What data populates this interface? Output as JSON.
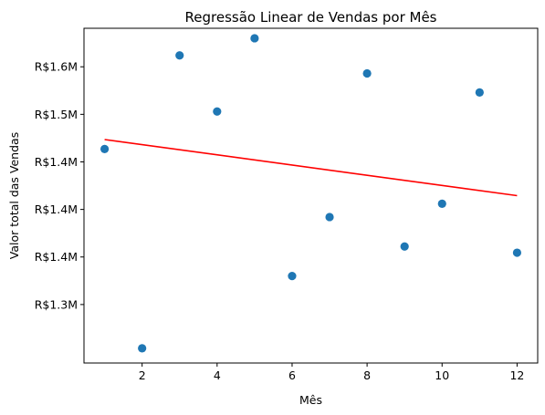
{
  "chart_data": {
    "type": "scatter",
    "title": "Regressão Linear de Vendas por Mês",
    "xlabel": "Mês",
    "ylabel": "Valor total das Vendas",
    "xlim": [
      0.45,
      12.55
    ],
    "ylim": [
      1.2385,
      1.5905
    ],
    "x_ticks": [
      2,
      4,
      6,
      8,
      10,
      12
    ],
    "x_tick_labels": [
      "2",
      "4",
      "6",
      "8",
      "10",
      "12"
    ],
    "y_ticks": [
      1.3,
      1.35,
      1.4,
      1.45,
      1.5,
      1.55
    ],
    "y_tick_labels": [
      "R$1.3M",
      "R$1.4M",
      "R$1.4M",
      "R$1.4M",
      "R$1.5M",
      "R$1.6M"
    ],
    "y_ticks_extra_note": "",
    "scatter": {
      "color": "#1f77b4",
      "points": [
        {
          "x": 1,
          "y": 1.4635
        },
        {
          "x": 2,
          "y": 1.254
        },
        {
          "x": 3,
          "y": 1.562
        },
        {
          "x": 4,
          "y": 1.503
        },
        {
          "x": 5,
          "y": 1.58
        },
        {
          "x": 6,
          "y": 1.33
        },
        {
          "x": 7,
          "y": 1.392
        },
        {
          "x": 8,
          "y": 1.543
        },
        {
          "x": 9,
          "y": 1.361
        },
        {
          "x": 10,
          "y": 1.406
        },
        {
          "x": 11,
          "y": 1.523
        },
        {
          "x": 12,
          "y": 1.3545
        }
      ]
    },
    "regression_line": {
      "color": "#ff0000",
      "x": [
        1,
        12
      ],
      "y": [
        1.4735,
        1.4145
      ]
    },
    "grid": false,
    "legend": "none"
  }
}
